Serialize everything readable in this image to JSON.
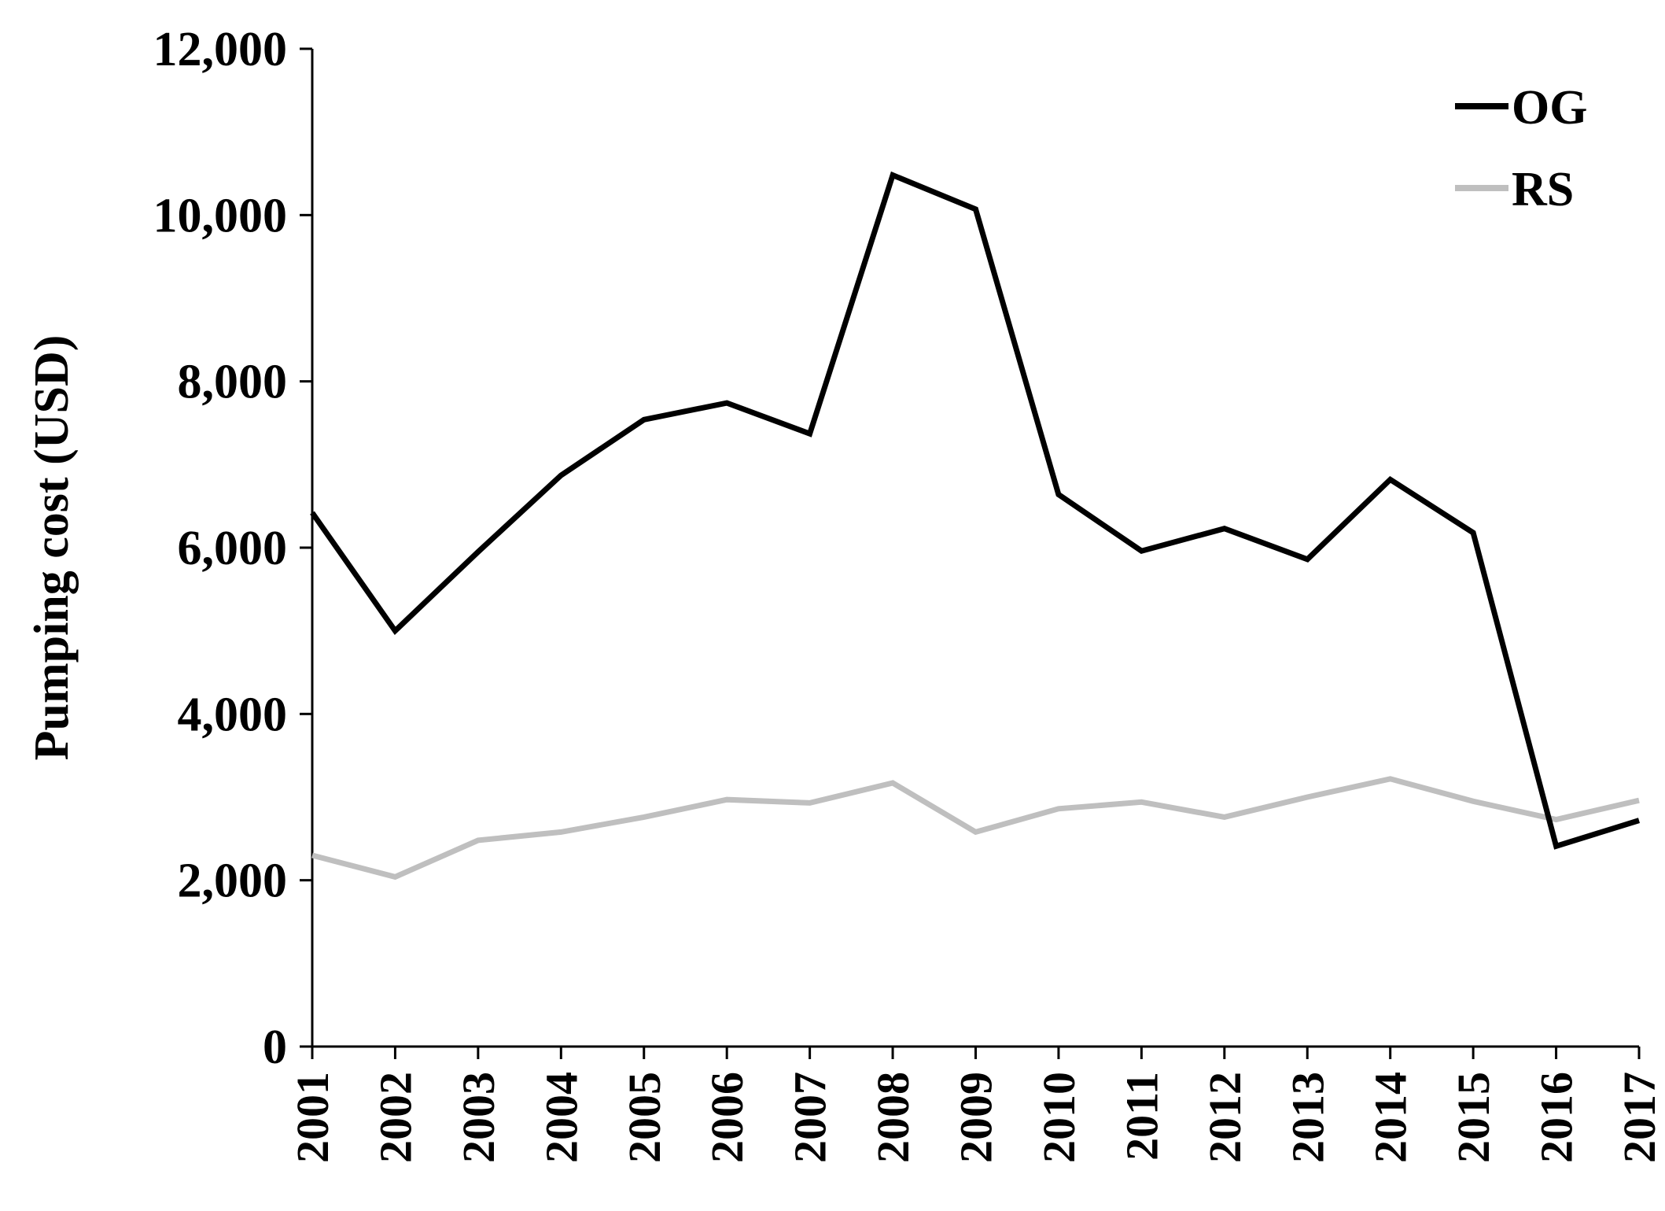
{
  "chart_data": {
    "type": "line",
    "title": "",
    "xlabel": "",
    "ylabel": "Pumping cost (USD)",
    "x": [
      "2001",
      "2002",
      "2003",
      "2004",
      "2005",
      "2006",
      "2007",
      "2008",
      "2009",
      "2010",
      "2011",
      "2012",
      "2013",
      "2014",
      "2015",
      "2016",
      "2017"
    ],
    "ylim": [
      0,
      12000
    ],
    "yticks": [
      0,
      2000,
      4000,
      6000,
      8000,
      10000,
      12000
    ],
    "ytick_labels": [
      "0",
      "2,000",
      "4,000",
      "6,000",
      "8,000",
      "10,000",
      "12,000"
    ],
    "grid": false,
    "legend_position": "top-right",
    "series": [
      {
        "name": "OG",
        "color": "#000000",
        "values": [
          6420,
          5000,
          5950,
          6870,
          7540,
          7740,
          7370,
          10480,
          10070,
          6640,
          5960,
          6230,
          5860,
          6820,
          6180,
          2410,
          2720
        ]
      },
      {
        "name": "RS",
        "color": "#bfbfbf",
        "values": [
          2300,
          2040,
          2480,
          2580,
          2760,
          2970,
          2930,
          3170,
          2580,
          2860,
          2940,
          2760,
          3000,
          3220,
          2950,
          2730,
          2960
        ]
      }
    ]
  }
}
